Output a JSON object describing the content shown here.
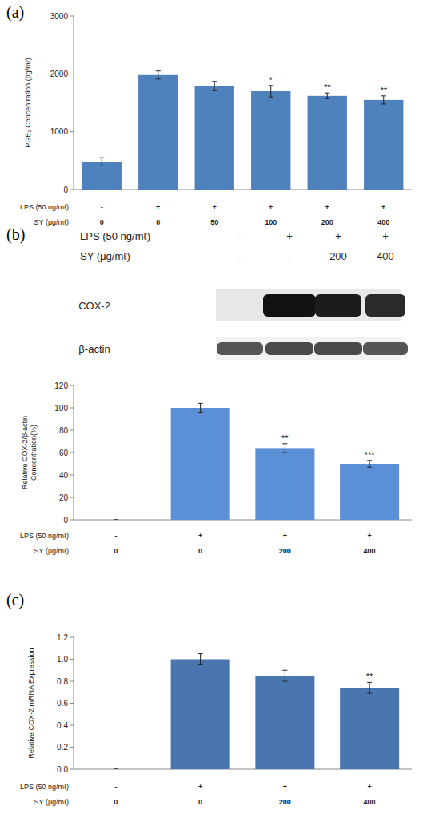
{
  "panel_labels": [
    "(a)",
    "(b)",
    "(c)"
  ],
  "blot": {
    "header_rows": [
      {
        "label": "LPS (50 ng/mℓ)",
        "values": [
          "-",
          "+",
          "+",
          "+"
        ]
      },
      {
        "label": "SY (μg/mℓ)",
        "values": [
          "-",
          "-",
          "200",
          "400"
        ]
      }
    ],
    "bands": [
      {
        "label": "COX-2"
      },
      {
        "label": "β-actin"
      }
    ]
  },
  "chart_data": [
    {
      "type": "bar",
      "y_label": "PGE₂ Concentration (pg/mℓ)",
      "ylim": [
        0,
        3000
      ],
      "yticks": [
        0,
        1000,
        2000,
        3000
      ],
      "values": [
        480,
        1980,
        1790,
        1700,
        1620,
        1550
      ],
      "errors": [
        70,
        70,
        80,
        100,
        50,
        70
      ],
      "significance": [
        null,
        null,
        null,
        "*",
        "**",
        "**"
      ],
      "color": "#4f81bd",
      "grid": false,
      "conditions": [
        {
          "label": "LPS (50 ng/mℓ)",
          "values": [
            "-",
            "+",
            "+",
            "+",
            "+",
            "+"
          ]
        },
        {
          "label": "SY (μg/mℓ)",
          "values": [
            0,
            0,
            50,
            100,
            200,
            400
          ]
        }
      ]
    },
    {
      "type": "bar",
      "y_label": "Relative COX-2/β-actin Concentration(%)",
      "ylim": [
        0,
        120
      ],
      "yticks": [
        0,
        20,
        40,
        60,
        80,
        100,
        120
      ],
      "values": [
        0,
        100,
        64,
        50
      ],
      "errors": [
        0,
        4,
        4,
        3
      ],
      "significance": [
        null,
        null,
        "**",
        "***"
      ],
      "color": "#5b8fd6",
      "grid": false,
      "conditions": [
        {
          "label": "LPS (50 ng/mℓ)",
          "values": [
            "-",
            "+",
            "+",
            "+"
          ]
        },
        {
          "label": "SY (μg/mℓ)",
          "values": [
            0,
            0,
            200,
            400
          ]
        }
      ]
    },
    {
      "type": "bar",
      "y_label": "Relative COX-2 mRNA Expression",
      "ylim": [
        0,
        1.2
      ],
      "yticks": [
        {
          "value": 0,
          "label": "0.0"
        },
        {
          "value": 0.2,
          "label": "0.2"
        },
        {
          "value": 0.4,
          "label": "0.4"
        },
        {
          "value": 0.6,
          "label": "0.6"
        },
        {
          "value": 0.8,
          "label": "0.8"
        },
        {
          "value": 1,
          "label": "1.0"
        },
        {
          "value": 1.2,
          "label": "1.2"
        }
      ],
      "values": [
        0,
        1.0,
        0.85,
        0.74
      ],
      "errors": [
        0,
        0.05,
        0.05,
        0.05
      ],
      "significance": [
        null,
        null,
        null,
        "**"
      ],
      "color": "#4a76b0",
      "grid": false,
      "conditions": [
        {
          "label": "LPS (50 ng/mℓ)",
          "values": [
            "-",
            "+",
            "+",
            "+"
          ]
        },
        {
          "label": "SY (μg/mℓ)",
          "values": [
            0,
            0,
            200,
            400
          ]
        }
      ]
    }
  ]
}
